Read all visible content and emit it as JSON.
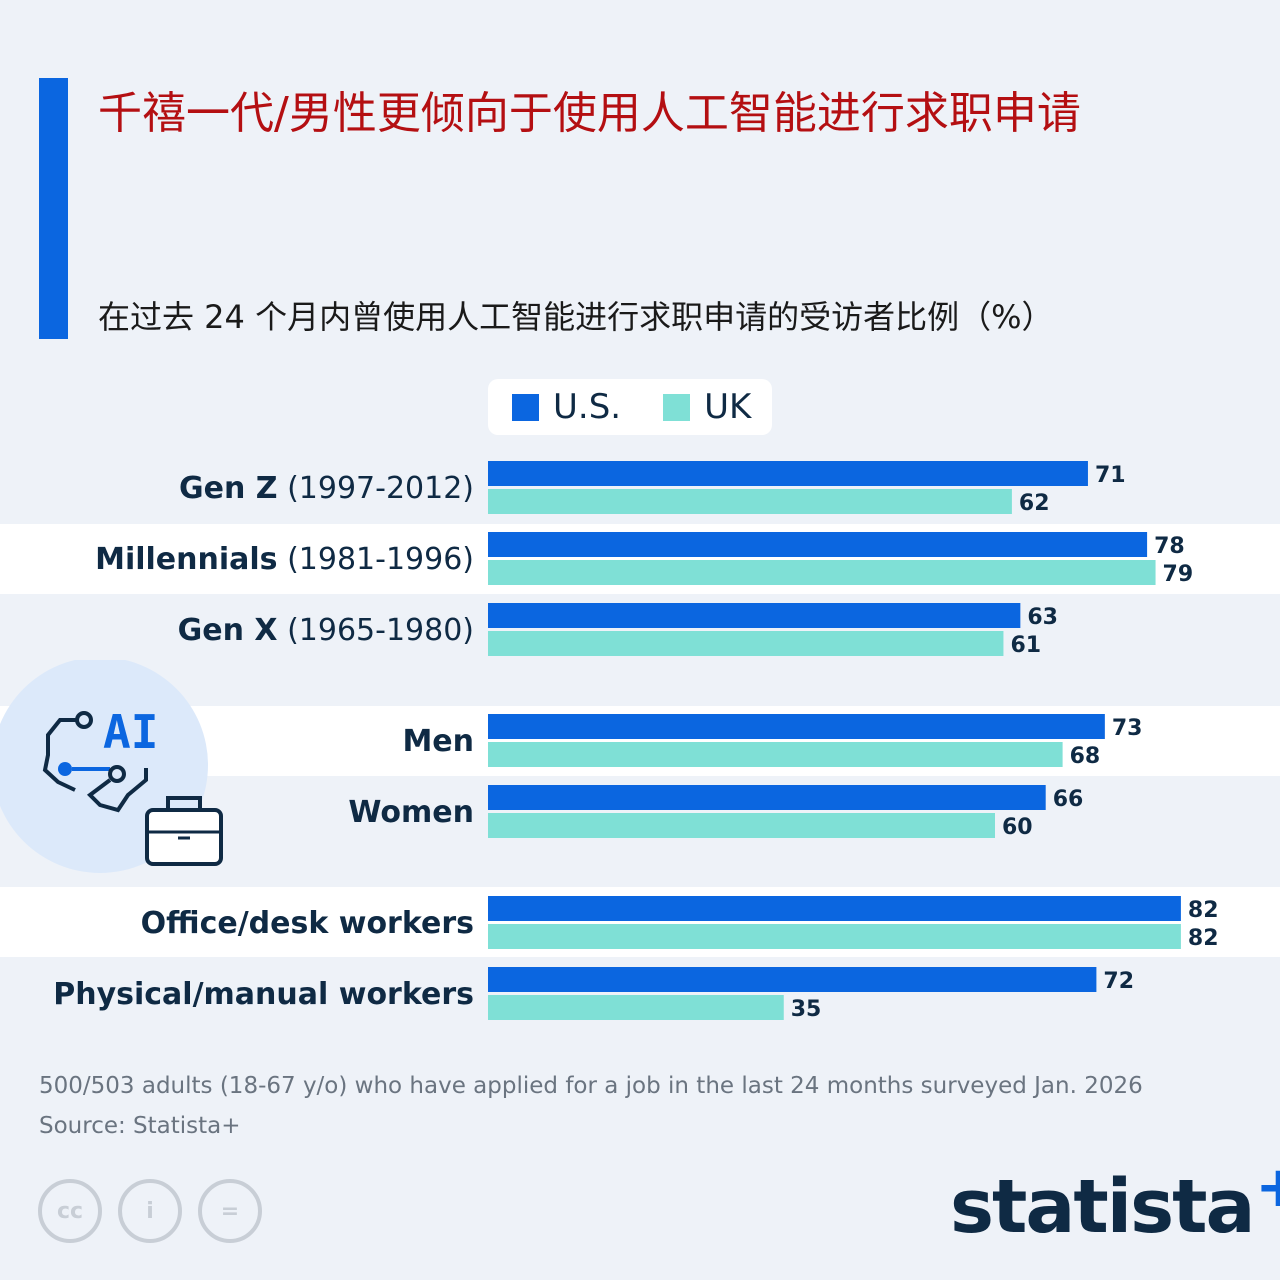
{
  "title": "千禧一代/男性更倾向于使用人工智能进行求职申请",
  "subtitle": "在过去 24 个月内曾使用人工智能进行求职申请的受访者比例（%）",
  "legend": {
    "us": "U.S.",
    "uk": "UK"
  },
  "colors": {
    "us": "#0b66e0",
    "uk": "#7fe0d6",
    "title": "#b40f12",
    "accent": "#0b66e0"
  },
  "illustration": {
    "icon": "ai-briefcase-icon",
    "text": "AI"
  },
  "chart_data": {
    "type": "bar",
    "orientation": "horizontal",
    "categories": [
      {
        "bold": "Gen Z",
        "range": "(1997-2012)"
      },
      {
        "bold": "Millennials",
        "range": "(1981-1996)"
      },
      {
        "bold": "Gen X",
        "range": "(1965-1980)"
      },
      {
        "bold": "Men",
        "range": ""
      },
      {
        "bold": "Women",
        "range": ""
      },
      {
        "bold": "Office/desk workers",
        "range": ""
      },
      {
        "bold": "Physical/manual workers",
        "range": ""
      }
    ],
    "series": [
      {
        "name": "U.S.",
        "values": [
          71,
          78,
          63,
          73,
          66,
          82,
          72
        ]
      },
      {
        "name": "UK",
        "values": [
          62,
          79,
          61,
          68,
          60,
          82,
          35
        ]
      }
    ],
    "xlim": [
      0,
      100
    ],
    "grid": false,
    "legend_position": "top"
  },
  "footer": {
    "note": "500/503 adults (18-67 y/o) who have applied for a job in the last 24 months surveyed Jan. 2026",
    "source": "Source: Statista+",
    "license_icons": [
      "cc-icon",
      "by-icon",
      "nd-icon"
    ],
    "license_text": {
      "cc": "cc",
      "by": "i",
      "nd": "="
    },
    "logo_text": "statista",
    "logo_plus": "+"
  }
}
